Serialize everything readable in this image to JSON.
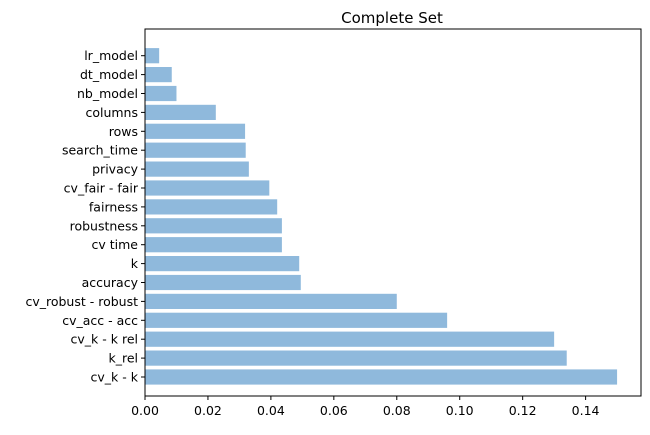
{
  "chart_data": {
    "type": "bar",
    "orientation": "horizontal",
    "title": "Complete Set",
    "xlabel": "",
    "ylabel": "",
    "categories": [
      "cv_k - k",
      "k_rel",
      "cv_k - k rel",
      "cv_acc - acc",
      "cv_robust - robust",
      "accuracy",
      "k",
      "cv time",
      "robustness",
      "fairness",
      "cv_fair - fair",
      "privacy",
      "search_time",
      "rows",
      "columns",
      "nb_model",
      "dt_model",
      "lr_model"
    ],
    "values": [
      0.15,
      0.134,
      0.13,
      0.096,
      0.08,
      0.0495,
      0.049,
      0.0435,
      0.0435,
      0.042,
      0.0395,
      0.033,
      0.032,
      0.0318,
      0.0225,
      0.01,
      0.0085,
      0.0045
    ],
    "xlim": [
      0,
      0.1576
    ],
    "xticks": [
      "0.00",
      "0.02",
      "0.04",
      "0.06",
      "0.08",
      "0.10",
      "0.12",
      "0.14"
    ],
    "xtick_values": [
      0,
      0.02,
      0.04,
      0.06,
      0.08,
      0.1,
      0.12,
      0.14
    ],
    "grid": false,
    "bar_color": "#8fb9dc"
  }
}
